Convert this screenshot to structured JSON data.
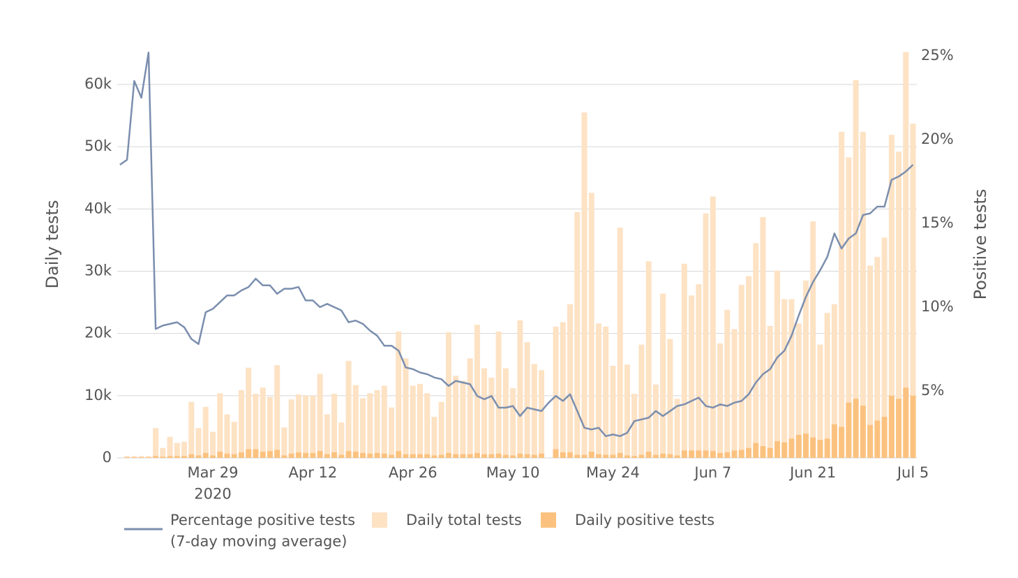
{
  "chart_data": {
    "type": "bar-line",
    "y_label": "Daily tests",
    "y2_label": "Positive tests",
    "x": [
      "2020-03-16",
      "2020-03-17",
      "2020-03-18",
      "2020-03-19",
      "2020-03-20",
      "2020-03-21",
      "2020-03-22",
      "2020-03-23",
      "2020-03-24",
      "2020-03-25",
      "2020-03-26",
      "2020-03-27",
      "2020-03-28",
      "2020-03-29",
      "2020-03-30",
      "2020-03-31",
      "2020-04-01",
      "2020-04-02",
      "2020-04-03",
      "2020-04-04",
      "2020-04-05",
      "2020-04-06",
      "2020-04-07",
      "2020-04-08",
      "2020-04-09",
      "2020-04-10",
      "2020-04-11",
      "2020-04-12",
      "2020-04-13",
      "2020-04-14",
      "2020-04-15",
      "2020-04-16",
      "2020-04-17",
      "2020-04-18",
      "2020-04-19",
      "2020-04-20",
      "2020-04-21",
      "2020-04-22",
      "2020-04-23",
      "2020-04-24",
      "2020-04-25",
      "2020-04-26",
      "2020-04-27",
      "2020-04-28",
      "2020-04-29",
      "2020-04-30",
      "2020-05-01",
      "2020-05-02",
      "2020-05-03",
      "2020-05-04",
      "2020-05-05",
      "2020-05-06",
      "2020-05-07",
      "2020-05-08",
      "2020-05-09",
      "2020-05-10",
      "2020-05-11",
      "2020-05-12",
      "2020-05-13",
      "2020-05-14",
      "2020-05-15",
      "2020-05-16",
      "2020-05-17",
      "2020-05-18",
      "2020-05-19",
      "2020-05-20",
      "2020-05-21",
      "2020-05-22",
      "2020-05-23",
      "2020-05-24",
      "2020-05-25",
      "2020-05-26",
      "2020-05-27",
      "2020-05-28",
      "2020-05-29",
      "2020-05-30",
      "2020-05-31",
      "2020-06-01",
      "2020-06-02",
      "2020-06-03",
      "2020-06-04",
      "2020-06-05",
      "2020-06-06",
      "2020-06-07",
      "2020-06-08",
      "2020-06-09",
      "2020-06-10",
      "2020-06-11",
      "2020-06-12",
      "2020-06-13",
      "2020-06-14",
      "2020-06-15",
      "2020-06-16",
      "2020-06-17",
      "2020-06-18",
      "2020-06-19",
      "2020-06-20",
      "2020-06-21",
      "2020-06-22",
      "2020-06-23",
      "2020-06-24",
      "2020-06-25",
      "2020-06-26",
      "2020-06-27",
      "2020-06-28",
      "2020-06-29",
      "2020-06-30",
      "2020-07-01",
      "2020-07-02",
      "2020-07-03",
      "2020-07-04",
      "2020-07-05"
    ],
    "xticks": [
      {
        "value": "2020-03-29",
        "label": "Mar 29\n2020"
      },
      {
        "value": "2020-04-12",
        "label": "Apr 12"
      },
      {
        "value": "2020-04-26",
        "label": "Apr 26"
      },
      {
        "value": "2020-05-10",
        "label": "May 10"
      },
      {
        "value": "2020-05-24",
        "label": "May 24"
      },
      {
        "value": "2020-06-07",
        "label": "Jun 7"
      },
      {
        "value": "2020-06-21",
        "label": "Jun 21"
      },
      {
        "value": "2020-07-05",
        "label": "Jul 5"
      }
    ],
    "ylim": [
      0,
      66000
    ],
    "yticks": [
      0,
      {
        "value": 10000,
        "label": "10k"
      },
      {
        "value": 20000,
        "label": "20k"
      },
      {
        "value": 30000,
        "label": "30k"
      },
      {
        "value": 40000,
        "label": "40k"
      },
      {
        "value": 50000,
        "label": "50k"
      },
      {
        "value": 60000,
        "label": "60k"
      }
    ],
    "y2lim": [
      1,
      25.5
    ],
    "y2ticks": [
      {
        "value": 5,
        "label": "5%"
      },
      {
        "value": 10,
        "label": "10%"
      },
      {
        "value": 15,
        "label": "15%"
      },
      {
        "value": 20,
        "label": "20%"
      },
      {
        "value": 25,
        "label": "25%"
      }
    ],
    "grid": true,
    "legend": "bottom",
    "series": [
      {
        "name": "Percentage positive tests\n(7-day moving average)",
        "type": "line",
        "axis": "y2",
        "color": "#7b8eae",
        "values": [
          18.5,
          18.8,
          23.5,
          22.5,
          25.2,
          8.7,
          8.9,
          9.0,
          9.1,
          8.8,
          8.1,
          7.8,
          9.7,
          9.9,
          10.3,
          10.7,
          10.7,
          11.0,
          11.2,
          11.7,
          11.3,
          11.3,
          10.8,
          11.1,
          11.1,
          11.2,
          10.4,
          10.4,
          10.0,
          10.2,
          10.0,
          9.8,
          9.1,
          9.2,
          9.0,
          8.6,
          8.3,
          7.7,
          7.7,
          7.4,
          6.4,
          6.3,
          6.1,
          6.0,
          5.8,
          5.7,
          5.3,
          5.6,
          5.5,
          5.4,
          4.7,
          4.5,
          4.7,
          4.0,
          4.0,
          4.1,
          3.5,
          4.0,
          3.9,
          3.8,
          4.3,
          4.7,
          4.4,
          4.8,
          3.8,
          2.8,
          2.7,
          2.8,
          2.3,
          2.4,
          2.3,
          2.5,
          3.2,
          3.3,
          3.4,
          3.8,
          3.5,
          3.8,
          4.1,
          4.2,
          4.4,
          4.6,
          4.1,
          4.0,
          4.2,
          4.1,
          4.3,
          4.4,
          4.8,
          5.5,
          6.0,
          6.3,
          7.0,
          7.4,
          8.3,
          9.5,
          10.6,
          11.5,
          12.2,
          13.0,
          14.4,
          13.5,
          14.1,
          14.4,
          15.5,
          15.6,
          16.0,
          16.0,
          17.6,
          17.8,
          18.1,
          18.5
        ]
      },
      {
        "name": "Daily total tests",
        "type": "bar",
        "color": "#fde2c4",
        "values": [
          null,
          300,
          300,
          300,
          300,
          4800,
          1600,
          3400,
          2400,
          2600,
          9000,
          4800,
          8200,
          4200,
          10400,
          7000,
          5800,
          10900,
          14500,
          10300,
          11300,
          9800,
          14900,
          4900,
          9400,
          10200,
          10000,
          10000,
          13500,
          7000,
          10300,
          5700,
          15600,
          11700,
          9600,
          10400,
          10900,
          11600,
          8100,
          20300,
          16000,
          11600,
          11900,
          10400,
          6600,
          9000,
          20200,
          13200,
          12400,
          16000,
          21400,
          14400,
          12900,
          20300,
          14400,
          11200,
          22100,
          18600,
          15100,
          14100,
          null,
          21100,
          21800,
          24700,
          39500,
          55500,
          42600,
          21600,
          21100,
          14800,
          37000,
          15000,
          10300,
          18200,
          31600,
          11800,
          26400,
          19100,
          9500,
          31200,
          26100,
          27900,
          39300,
          42000,
          18400,
          23800,
          20700,
          27800,
          29200,
          34500,
          38700,
          21200,
          30100,
          25500,
          25500,
          21600,
          28500,
          38000,
          18200,
          23300,
          24700,
          52400,
          48300,
          60700,
          52400,
          30900,
          32300,
          35400,
          51900,
          49200,
          65200,
          53700
        ]
      },
      {
        "name": "Daily positive tests",
        "type": "bar",
        "color": "#fbc27f",
        "values": [
          null,
          100,
          100,
          100,
          100,
          300,
          200,
          300,
          300,
          300,
          600,
          400,
          800,
          400,
          1000,
          700,
          600,
          900,
          1400,
          1400,
          1000,
          1100,
          1300,
          400,
          700,
          900,
          800,
          800,
          1100,
          600,
          900,
          500,
          1100,
          1000,
          800,
          700,
          800,
          700,
          500,
          1100,
          600,
          600,
          600,
          600,
          400,
          500,
          800,
          600,
          600,
          600,
          800,
          600,
          600,
          700,
          500,
          400,
          700,
          600,
          500,
          700,
          null,
          1400,
          900,
          900,
          500,
          500,
          1000,
          600,
          500,
          500,
          800,
          400,
          300,
          500,
          1000,
          500,
          700,
          600,
          400,
          1200,
          1200,
          1200,
          1200,
          1100,
          800,
          900,
          1200,
          1300,
          1600,
          2400,
          1900,
          1600,
          2700,
          2500,
          3100,
          3700,
          3900,
          3300,
          2900,
          3100,
          5400,
          5000,
          8900,
          9500,
          8400,
          5300,
          6000,
          6600,
          10000,
          9500,
          11300,
          10000
        ]
      }
    ]
  }
}
